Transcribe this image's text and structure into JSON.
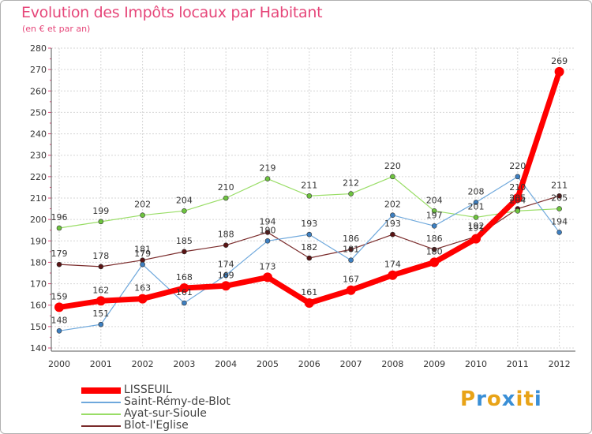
{
  "header": {
    "title": "Evolution des Impôts locaux par Habitant",
    "subtitle": "(en € et par an)"
  },
  "logo": {
    "text": "Proxiti",
    "letters": [
      "P",
      "r",
      "o",
      "x",
      "i",
      "t",
      "i"
    ],
    "colors": [
      "#e8a317",
      "#3a8fd6",
      "#e8a317",
      "#3a8fd6",
      "#e8a317",
      "#e8a317",
      "#3a8fd6"
    ]
  },
  "chart_data": {
    "type": "line",
    "title": "Evolution des Impôts locaux par Habitant",
    "ylabel": "(en € et par an)",
    "xlabel": "",
    "categories": [
      "2000",
      "2001",
      "2002",
      "2003",
      "2004",
      "2005",
      "2006",
      "2007",
      "2008",
      "2009",
      "2010",
      "2011",
      "2012"
    ],
    "ylim": [
      140,
      280
    ],
    "yticks": [
      140,
      150,
      160,
      170,
      180,
      190,
      200,
      210,
      220,
      230,
      240,
      250,
      260,
      270,
      280
    ],
    "grid": true,
    "series": [
      {
        "name": "LISSEUIL",
        "color": "#ff0000",
        "dot": "#ff0000",
        "width": 7,
        "r": 6,
        "values": [
          159,
          162,
          163,
          168,
          169,
          173,
          161,
          167,
          174,
          180,
          191,
          210,
          269
        ],
        "labels": [
          "159",
          "162",
          "163",
          "168",
          "169",
          "173",
          "161",
          "167",
          "174",
          "180",
          "191",
          "210",
          "269"
        ]
      },
      {
        "name": "Saint-Rémy-de-Blot",
        "color": "#6ea8dc",
        "dot": "#3d7fc1",
        "width": 1.2,
        "r": 3,
        "values": [
          148,
          151,
          179,
          161,
          174,
          190,
          193,
          181,
          202,
          197,
          208,
          220,
          194
        ],
        "labels": [
          "148",
          "151",
          "179",
          "161",
          "174",
          "190",
          "193",
          "181",
          "202",
          "197",
          "208",
          "220",
          "194"
        ]
      },
      {
        "name": "Ayat-sur-Sioule",
        "color": "#99dd66",
        "dot": "#6ec43f",
        "width": 1.2,
        "r": 3,
        "values": [
          196,
          199,
          202,
          204,
          210,
          219,
          211,
          212,
          220,
          204,
          201,
          204,
          205
        ],
        "labels": [
          "196",
          "199",
          "202",
          "204",
          "210",
          "219",
          "211",
          "212",
          "220",
          "204",
          "201",
          "204",
          "205"
        ]
      },
      {
        "name": "Blot-l'Eglise",
        "color": "#7a2b2b",
        "dot": "#5a1414",
        "width": 1.2,
        "r": 3,
        "values": [
          179,
          178,
          181,
          185,
          188,
          194,
          182,
          186,
          193,
          186,
          192,
          205,
          211
        ],
        "labels": [
          "179",
          "178",
          "181",
          "185",
          "188",
          "194",
          "182",
          "186",
          "193",
          "186",
          "192",
          "205",
          "211"
        ]
      }
    ]
  }
}
